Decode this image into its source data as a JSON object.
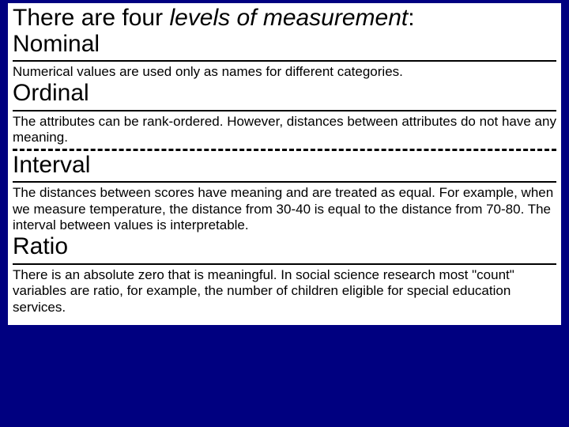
{
  "title_prefix": "There are four ",
  "title_italic": "levels of measurement",
  "title_suffix": ":",
  "levels": [
    {
      "name": "Nominal",
      "desc": "Numerical values are used only as names for different categories."
    },
    {
      "name": "Ordinal",
      "desc": "The attributes can be rank-ordered. However, distances between attributes do not have any meaning."
    },
    {
      "name": "Interval",
      "desc": "The distances between scores have meaning and are treated as equal. For example, when we measure temperature, the distance from 30-40 is equal to the distance from 70-80. The interval between values is interpretable."
    },
    {
      "name": "Ratio",
      "desc": "There is an absolute zero that is meaningful. In social science research most \"count\" variables are ratio, for example, the number of children eligible for special education services."
    }
  ],
  "style": {
    "background_color": "#000080",
    "content_bg": "#ffffff",
    "text_color": "#000000",
    "title_fontsize": 30,
    "heading_fontsize": 30,
    "desc_fontsize": 17,
    "slide_width": 720,
    "slide_height": 540
  }
}
